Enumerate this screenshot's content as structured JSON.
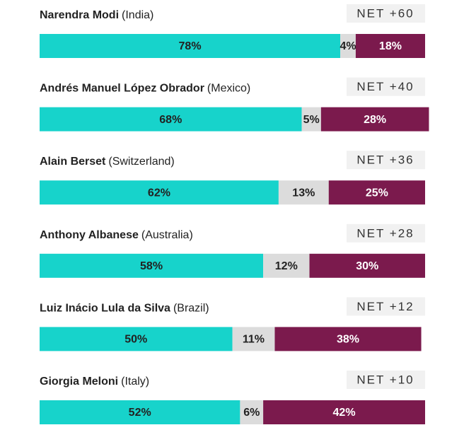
{
  "chart_data": {
    "type": "stacked-bar",
    "categories": [
      "Narendra Modi",
      "Andrés Manuel López Obrador",
      "Alain Berset",
      "Anthony Albanese",
      "Luiz Inácio Lula da Silva",
      "Giorgia Meloni"
    ],
    "countries": [
      "(India)",
      "(Mexico)",
      "(Switzerland)",
      "(Australia)",
      "(Brazil)",
      "(Italy)"
    ],
    "net_labels": [
      "NET +60",
      "NET +40",
      "NET +36",
      "NET +28",
      "NET +12",
      "NET +10"
    ],
    "xlim": [
      0,
      100
    ],
    "series": [
      {
        "color": "#17d3cb",
        "text_color": "#222222",
        "values": [
          78,
          68,
          62,
          58,
          50,
          52
        ],
        "value_labels": [
          "78%",
          "68%",
          "62%",
          "58%",
          "50%",
          "52%"
        ]
      },
      {
        "color": "#dcdcdc",
        "text_color": "#222222",
        "values": [
          4,
          5,
          13,
          12,
          11,
          6
        ],
        "value_labels": [
          "4%",
          "5%",
          "13%",
          "12%",
          "11%",
          "6%"
        ]
      },
      {
        "color": "#7b1a4d",
        "text_color": "#ffffff",
        "values": [
          18,
          28,
          25,
          30,
          38,
          42
        ],
        "value_labels": [
          "18%",
          "28%",
          "25%",
          "30%",
          "38%",
          "42%"
        ]
      }
    ]
  }
}
